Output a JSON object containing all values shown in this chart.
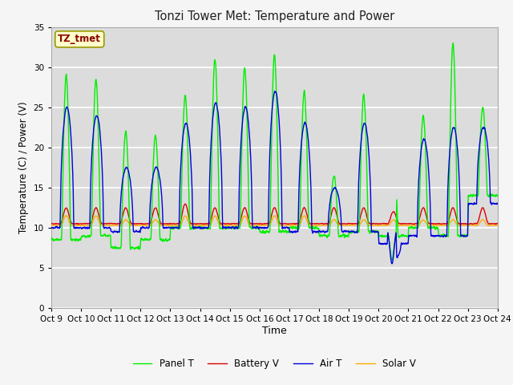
{
  "title": "Tonzi Tower Met: Temperature and Power",
  "xlabel": "Time",
  "ylabel": "Temperature (C) / Power (V)",
  "annotation": "TZ_tmet",
  "xlim": [
    0,
    15
  ],
  "ylim": [
    0,
    35
  ],
  "yticks": [
    0,
    5,
    10,
    15,
    20,
    25,
    30,
    35
  ],
  "xtick_labels": [
    "Oct 9",
    "Oct 10",
    "Oct 11",
    "Oct 12",
    "Oct 13",
    "Oct 14",
    "Oct 15",
    "Oct 16",
    "Oct 17",
    "Oct 18",
    "Oct 19",
    "Oct 20",
    "Oct 21",
    "Oct 22",
    "Oct 23",
    "Oct 24"
  ],
  "bg_color": "#dcdcdc",
  "grid_color": "#ffffff",
  "fig_color": "#f5f5f5",
  "line_colors": {
    "panel_t": "#00ee00",
    "battery_v": "#dd0000",
    "air_t": "#0000dd",
    "solar_v": "#ffaa00"
  },
  "legend_labels": [
    "Panel T",
    "Battery V",
    "Air T",
    "Solar V"
  ]
}
